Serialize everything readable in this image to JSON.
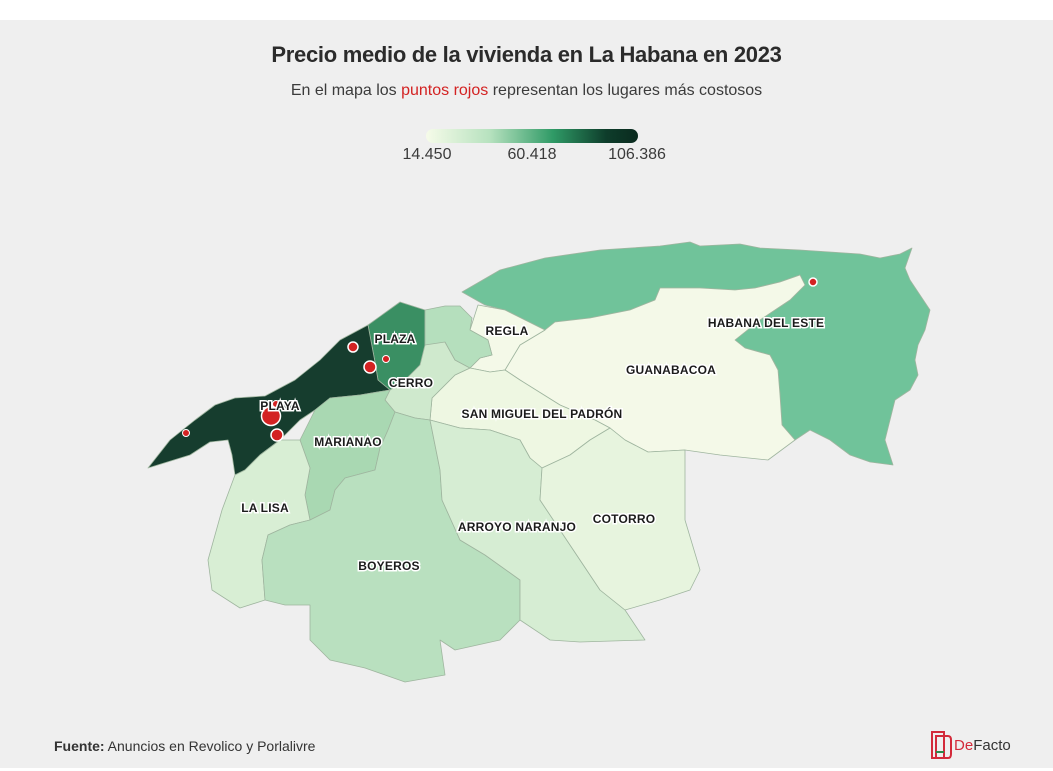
{
  "title": "Precio medio de la vivienda en La Habana en 2023",
  "subtitle": {
    "before": "En el mapa los ",
    "highlight": "puntos rojos",
    "after": " representan los lugares más costosos"
  },
  "legend": {
    "min": "14.450",
    "mid": "60.418",
    "max": "106.386",
    "colors": [
      "#f6fbe9",
      "#b7e2bf",
      "#2f9a66",
      "#0e3d2b"
    ]
  },
  "municipalities": [
    {
      "name": "PLAYA",
      "color": "#163d2e"
    },
    {
      "name": "PLAZA",
      "color": "#3a8f63"
    },
    {
      "name": "CERRO",
      "color": "#cfe9cd"
    },
    {
      "name": "REGLA",
      "color": "#f4f9e8"
    },
    {
      "name": "MARIANAO",
      "color": "#a9d8b2"
    },
    {
      "name": "LA LISA",
      "color": "#d8eed4"
    },
    {
      "name": "BOYEROS",
      "color": "#b9e0bf"
    },
    {
      "name": "ARROYO NARANJO",
      "color": "#d6edd3"
    },
    {
      "name": "SAN MIGUEL DEL PADRÓN",
      "color": "#eef7e2"
    },
    {
      "name": "GUANABACOA",
      "color": "#f4f9e8"
    },
    {
      "name": "COTORRO",
      "color": "#e7f4de"
    },
    {
      "name": "HABANA DEL ESTE",
      "color": "#70c39a"
    }
  ],
  "markers_color": "#d32222",
  "source": {
    "label": "Fuente:",
    "text": " Anuncios en Revolico y Porlalivre"
  },
  "brand": {
    "text_a": "De",
    "text_b": "Facto"
  }
}
